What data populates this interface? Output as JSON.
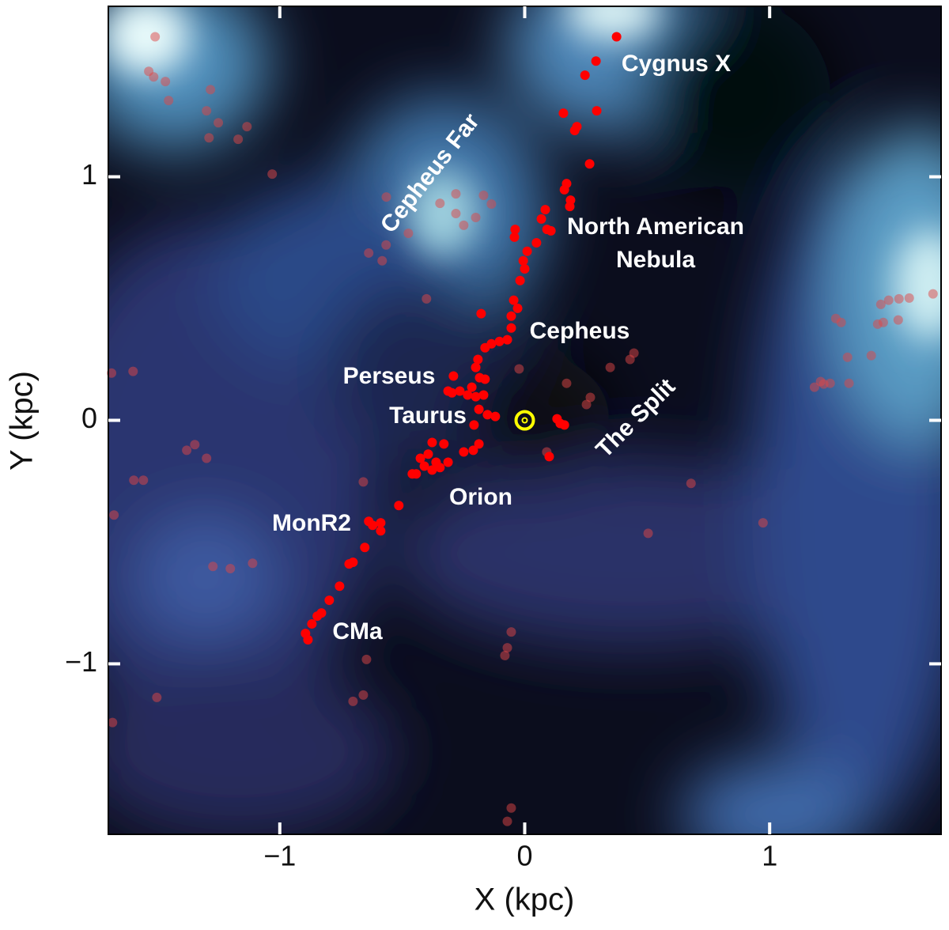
{
  "chart_data": {
    "type": "scatter",
    "xlabel": "X (kpc)",
    "ylabel": "Y (kpc)",
    "xlim": [
      -1.7,
      1.7
    ],
    "ylim": [
      -1.7,
      1.7
    ],
    "xticks": [
      {
        "value": -1,
        "label": "−1"
      },
      0,
      1
    ],
    "yticks": [
      {
        "value": -1,
        "label": "−1"
      },
      0,
      1
    ],
    "sun": {
      "x": 0,
      "y": 0,
      "color": "#ffff00"
    },
    "annotations": [
      "Cygnus X",
      "Cepheus Far",
      "North American",
      "Nebula",
      "Cepheus",
      "Perseus",
      "Taurus",
      "The Split",
      "Orion",
      "MonR2",
      "CMa"
    ],
    "series": [
      {
        "color": "#ff0000",
        "x": [
          0.375,
          0.291,
          0.246,
          0.294,
          0.158,
          0.213,
          0.204,
          0.265,
          0.171,
          0.162,
          0.187,
          0.184,
          0.084,
          0.068,
          0.091,
          0.107,
          -0.039,
          -0.042,
          0.048,
          0.01,
          -0.006,
          0,
          -0.019,
          -0.045,
          -0.029,
          -0.055,
          -0.178,
          -0.055,
          -0.071,
          -0.103,
          -0.136,
          -0.162,
          -0.191,
          -0.2,
          -0.291,
          -0.184,
          -0.162,
          -0.216,
          -0.265,
          -0.297,
          -0.313,
          -0.233,
          -0.2,
          -0.168,
          -0.187,
          -0.152,
          -0.12,
          -0.207,
          -0.187,
          -0.21,
          -0.249,
          -0.33,
          -0.378,
          -0.394,
          -0.426,
          -0.362,
          -0.346,
          -0.313,
          -0.378,
          -0.41,
          -0.443,
          -0.459,
          -0.514,
          -0.588,
          -0.621,
          -0.637,
          -0.588,
          -0.653,
          -0.701,
          -0.717,
          -0.756,
          -0.798,
          -0.83,
          -0.847,
          -0.869,
          -0.895,
          -0.885,
          0.145,
          0.132,
          0.162,
          0.1
        ],
        "y": [
          1.575,
          1.475,
          1.417,
          1.271,
          1.261,
          1.206,
          1.19,
          1.053,
          0.972,
          0.947,
          0.904,
          0.878,
          0.865,
          0.827,
          0.784,
          0.778,
          0.784,
          0.752,
          0.729,
          0.694,
          0.655,
          0.622,
          0.574,
          0.493,
          0.46,
          0.428,
          0.438,
          0.379,
          0.331,
          0.324,
          0.314,
          0.298,
          0.25,
          0.217,
          0.182,
          0.175,
          0.169,
          0.136,
          0.12,
          0.113,
          0.12,
          0.104,
          0.097,
          0.104,
          0.045,
          0.023,
          0.016,
          -0.019,
          -0.097,
          -0.123,
          -0.13,
          -0.097,
          -0.091,
          -0.139,
          -0.156,
          -0.172,
          -0.194,
          -0.172,
          -0.204,
          -0.188,
          -0.22,
          -0.22,
          -0.35,
          -0.421,
          -0.431,
          -0.415,
          -0.454,
          -0.522,
          -0.583,
          -0.59,
          -0.681,
          -0.739,
          -0.791,
          -0.804,
          -0.836,
          -0.875,
          -0.901,
          -0.013,
          0.006,
          -0.019,
          -0.149
        ]
      },
      {
        "color": "#e04545",
        "x": [
          -1.509,
          -1.535,
          -1.515,
          -1.467,
          -1.454,
          -1.283,
          -1.299,
          -1.251,
          -1.289,
          -1.17,
          -1.134,
          -1.031,
          -0.565,
          -0.281,
          -0.346,
          -0.168,
          -0.136,
          -0.281,
          -0.249,
          -0.2,
          -0.475,
          -0.637,
          -0.582,
          -0.566,
          -0.401,
          -1.687,
          -1.599,
          -1.38,
          -1.347,
          -1.299,
          -1.596,
          -1.557,
          -1.677,
          -1.273,
          -1.202,
          -1.111,
          -0.659,
          -1.502,
          -1.683,
          -0.659,
          -0.701,
          -0.646,
          -0.055,
          -0.071,
          -0.081,
          -0.055,
          -0.071,
          -0.023,
          0.171,
          0.268,
          0.252,
          0.09,
          0.349,
          0.43,
          0.446,
          0.679,
          0.973,
          0.504,
          1.27,
          1.292,
          1.441,
          1.464,
          1.454,
          1.486,
          1.528,
          1.57,
          1.667,
          1.525,
          1.415,
          1.318,
          1.183,
          1.221,
          1.247,
          1.324,
          1.208
        ],
        "y": [
          1.575,
          1.433,
          1.41,
          1.391,
          1.313,
          1.358,
          1.271,
          1.222,
          1.16,
          1.154,
          1.206,
          1.011,
          0.917,
          0.93,
          0.891,
          0.924,
          0.888,
          0.849,
          0.801,
          0.833,
          0.768,
          0.687,
          0.655,
          0.72,
          0.499,
          0.194,
          0.201,
          -0.123,
          -0.1,
          -0.156,
          -0.246,
          -0.246,
          -0.389,
          -0.6,
          -0.609,
          -0.587,
          -0.253,
          -1.138,
          -1.241,
          -1.128,
          -1.154,
          -0.982,
          -0.869,
          -0.934,
          -0.966,
          -1.592,
          -1.647,
          0.211,
          0.152,
          0.094,
          0.065,
          -0.13,
          0.217,
          0.25,
          0.276,
          -0.259,
          -0.421,
          -0.464,
          0.418,
          0.402,
          0.395,
          0.402,
          0.476,
          0.493,
          0.499,
          0.502,
          0.519,
          0.412,
          0.266,
          0.259,
          0.136,
          0.149,
          0.152,
          0.152,
          0.159
        ]
      }
    ]
  }
}
